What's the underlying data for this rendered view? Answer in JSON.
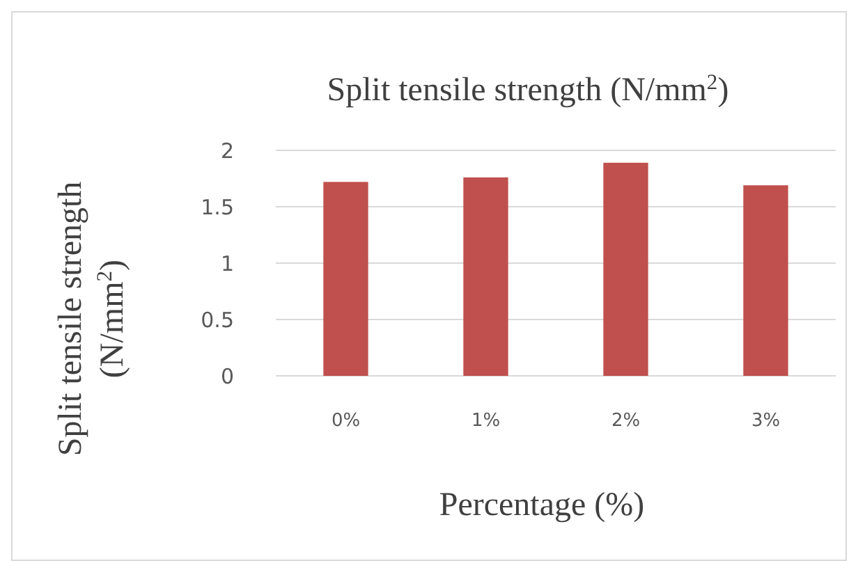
{
  "chart_data": {
    "type": "bar",
    "title": "Split tensile strength (N/mm$^{2}$)",
    "xlabel": "Percentage (%)",
    "ylabel": "Split tensile strength (N/mm$^{2}$)",
    "categories": [
      "0%",
      "1%",
      "2%",
      "3%"
    ],
    "values": [
      1.72,
      1.76,
      1.89,
      1.69
    ],
    "color": "#c0504d",
    "ylim": [
      0,
      2
    ],
    "yticks": [
      0,
      0.5,
      1,
      1.5,
      2
    ],
    "grid": "y"
  }
}
